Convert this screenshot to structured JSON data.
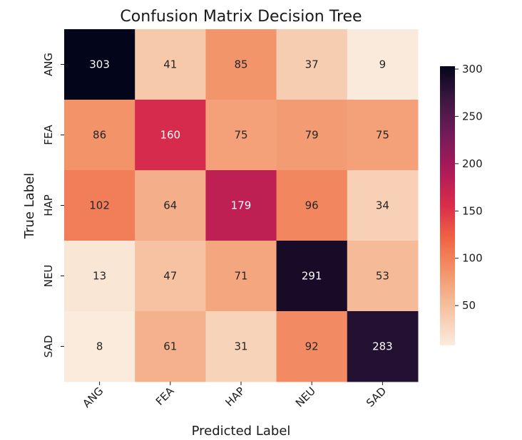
{
  "chart_data": {
    "type": "heatmap",
    "title": "Confusion Matrix Decision Tree",
    "xlabel": "Predicted Label",
    "ylabel": "True Label",
    "x_categories": [
      "ANG",
      "FEA",
      "HAP",
      "NEU",
      "SAD"
    ],
    "y_categories": [
      "ANG",
      "FEA",
      "HAP",
      "NEU",
      "SAD"
    ],
    "values": [
      [
        303,
        41,
        85,
        37,
        9
      ],
      [
        86,
        160,
        75,
        79,
        75
      ],
      [
        102,
        64,
        179,
        96,
        34
      ],
      [
        13,
        47,
        71,
        291,
        53
      ],
      [
        8,
        61,
        31,
        92,
        283
      ]
    ],
    "colormap": "rocket_r",
    "vmin": 8,
    "vmax": 303,
    "colorbar_ticks": [
      50,
      100,
      150,
      200,
      250,
      300
    ]
  }
}
